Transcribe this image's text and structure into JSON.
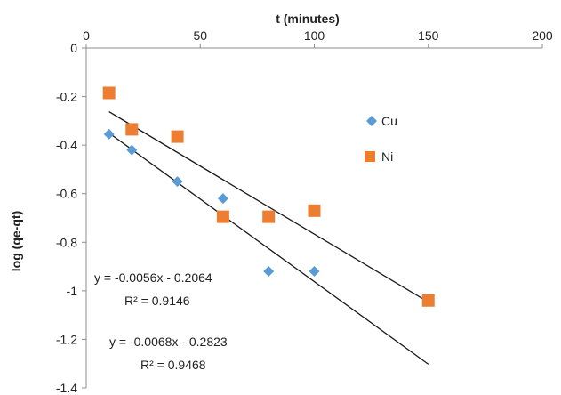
{
  "chart_data": {
    "type": "scatter",
    "xlabel": "t (minutes)",
    "ylabel": "log (qe-qt)",
    "xlim": [
      0,
      200
    ],
    "ylim": [
      -1.4,
      0
    ],
    "x_ticks": [
      "0",
      "50",
      "100",
      "150",
      "200"
    ],
    "y_ticks": [
      "0",
      "-0.2",
      "-0.4",
      "-0.6",
      "-0.8",
      "-1",
      "-1.2",
      "-1.4"
    ],
    "grid": false,
    "legend_position": "right",
    "series": [
      {
        "name": "Cu",
        "marker": "diamond",
        "color": "#5b9bd5",
        "x": [
          10,
          20,
          40,
          60,
          80,
          100
        ],
        "y": [
          -0.355,
          -0.42,
          -0.55,
          -0.62,
          -0.92,
          -0.92
        ],
        "trendline": {
          "slope": -0.0068,
          "intercept": -0.2823,
          "x_range": [
            10,
            150
          ]
        }
      },
      {
        "name": "Ni",
        "marker": "square",
        "color": "#ed7d31",
        "x": [
          10,
          20,
          40,
          60,
          80,
          100,
          150
        ],
        "y": [
          -0.185,
          -0.335,
          -0.365,
          -0.695,
          -0.695,
          -0.67,
          -1.04
        ],
        "trendline": {
          "slope": -0.0056,
          "intercept": -0.2064,
          "x_range": [
            10,
            150
          ]
        }
      }
    ],
    "annotations": [
      {
        "equation": "y = -0.0056x - 0.2064",
        "r2": "R² = 0.9146"
      },
      {
        "equation": "y = -0.0068x - 0.2823",
        "r2": "R² = 0.9468"
      }
    ]
  }
}
